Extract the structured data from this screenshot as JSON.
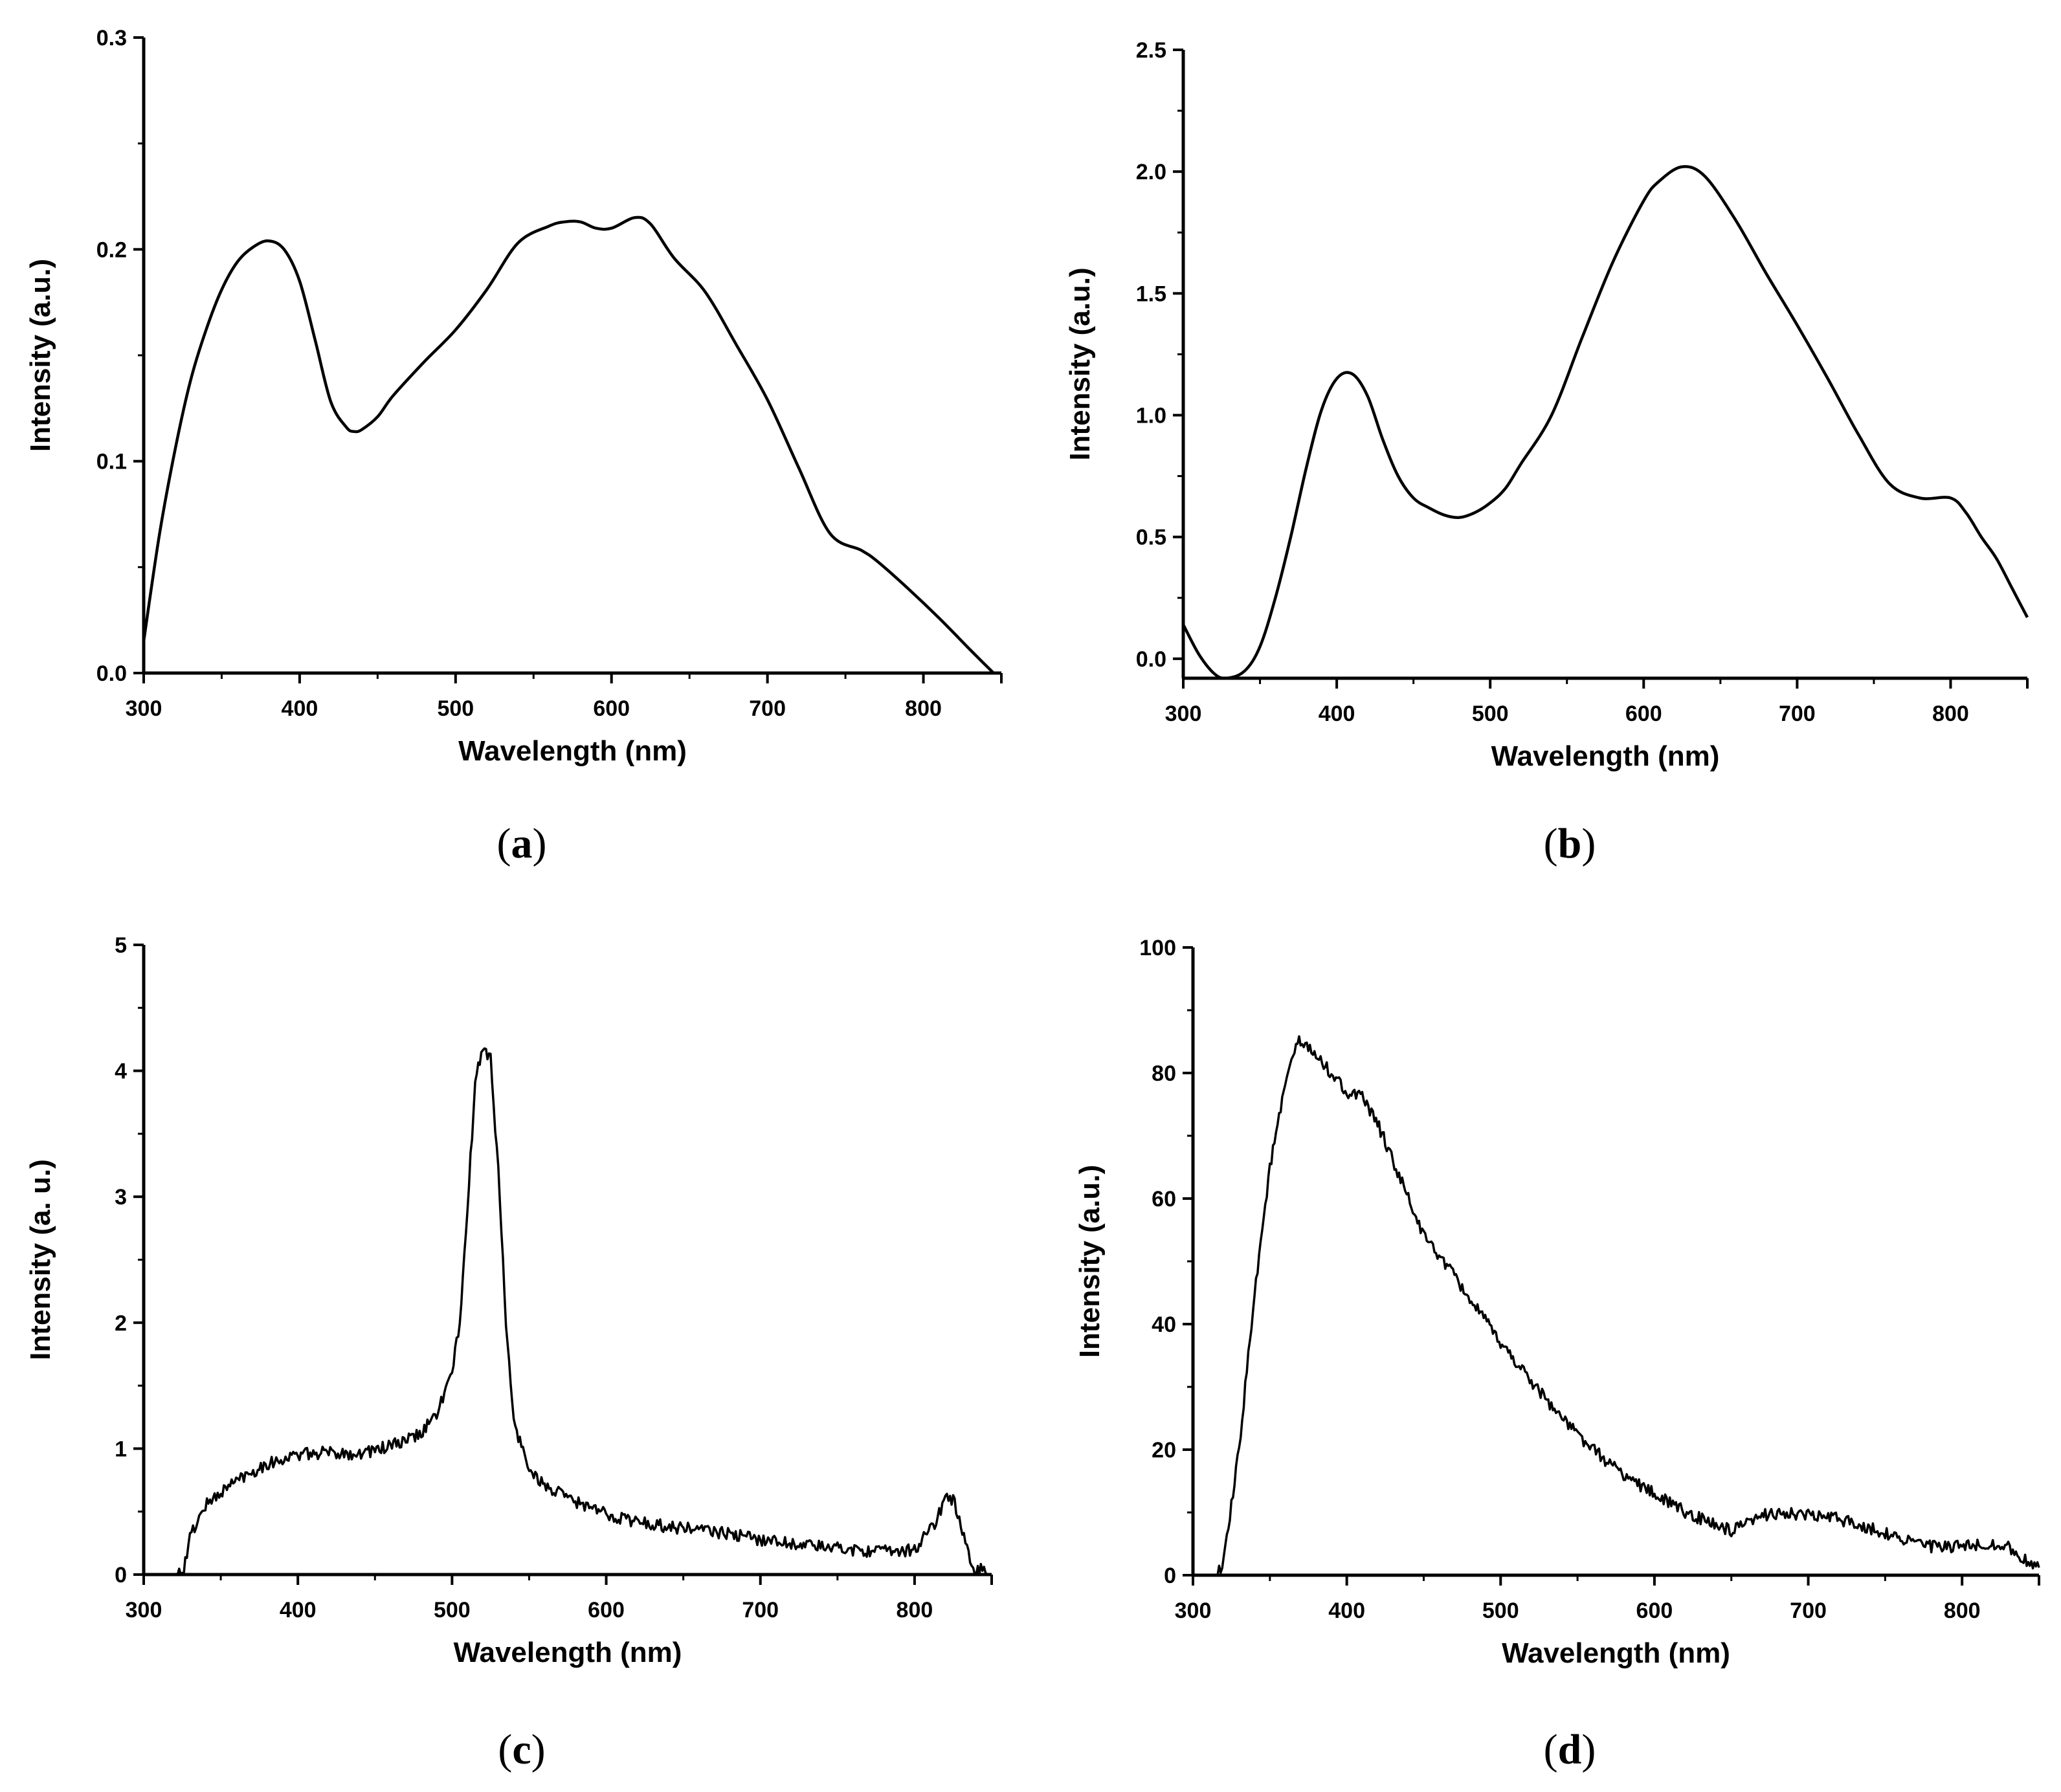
{
  "chart_data": [
    {
      "type": "line",
      "panel": "a",
      "caption_open": "(",
      "caption_letter": "a",
      "caption_close": ")",
      "xlabel": "Wavelength (nm)",
      "ylabel": "Intensity (a.u.)",
      "xlim": [
        300,
        850
      ],
      "ylim": [
        0,
        0.3
      ],
      "xticks": [
        300,
        400,
        500,
        600,
        700,
        800
      ],
      "xtick_labels": [
        "300",
        "400",
        "500",
        "600",
        "700",
        "800"
      ],
      "yticks": [
        0,
        0.1,
        0.2,
        0.3
      ],
      "ytick_labels": [
        "0.0",
        "0.1",
        "0.2",
        "0.3"
      ],
      "noisy": false,
      "x": [
        300,
        310,
        320,
        330,
        340,
        350,
        360,
        370,
        380,
        390,
        400,
        410,
        420,
        430,
        435,
        440,
        450,
        460,
        480,
        500,
        520,
        540,
        560,
        570,
        580,
        590,
        600,
        615,
        625,
        640,
        660,
        680,
        700,
        720,
        740,
        760,
        770,
        790,
        810,
        830,
        845
      ],
      "y": [
        0.015,
        0.065,
        0.105,
        0.138,
        0.162,
        0.181,
        0.194,
        0.201,
        0.204,
        0.2,
        0.185,
        0.157,
        0.128,
        0.116,
        0.114,
        0.115,
        0.121,
        0.131,
        0.147,
        0.162,
        0.181,
        0.203,
        0.211,
        0.213,
        0.213,
        0.21,
        0.21,
        0.215,
        0.212,
        0.196,
        0.18,
        0.155,
        0.129,
        0.097,
        0.066,
        0.058,
        0.053,
        0.04,
        0.026,
        0.011,
        0.0
      ]
    },
    {
      "type": "line",
      "panel": "b",
      "caption_open": "(",
      "caption_letter": "b",
      "caption_close": ")",
      "xlabel": "Wavelength (nm)",
      "ylabel": "Intensity (a.u.)",
      "xlim": [
        300,
        850
      ],
      "ylim": [
        -0.08,
        2.5
      ],
      "xticks": [
        300,
        400,
        500,
        600,
        700,
        800
      ],
      "xtick_labels": [
        "300",
        "400",
        "500",
        "600",
        "700",
        "800"
      ],
      "yticks": [
        0,
        0.5,
        1.0,
        1.5,
        2.0,
        2.5
      ],
      "ytick_labels": [
        "0.0",
        "0.5",
        "1.0",
        "1.5",
        "2.0",
        "2.5"
      ],
      "noisy": false,
      "x": [
        300,
        310,
        320,
        328,
        340,
        350,
        360,
        370,
        380,
        390,
        400,
        410,
        420,
        430,
        440,
        450,
        460,
        470,
        480,
        490,
        500,
        510,
        520,
        540,
        560,
        580,
        600,
        610,
        625,
        640,
        660,
        680,
        700,
        720,
        740,
        760,
        780,
        800,
        810,
        820,
        830,
        840,
        850
      ],
      "y": [
        0.14,
        0.02,
        -0.06,
        -0.08,
        -0.05,
        0.05,
        0.25,
        0.5,
        0.78,
        1.02,
        1.15,
        1.17,
        1.08,
        0.9,
        0.75,
        0.66,
        0.62,
        0.59,
        0.58,
        0.6,
        0.64,
        0.7,
        0.8,
        1.0,
        1.32,
        1.63,
        1.88,
        1.96,
        2.02,
        1.98,
        1.8,
        1.58,
        1.37,
        1.15,
        0.92,
        0.72,
        0.66,
        0.66,
        0.6,
        0.5,
        0.41,
        0.29,
        0.17
      ]
    },
    {
      "type": "line",
      "panel": "c",
      "caption_open": "(",
      "caption_letter": "c",
      "caption_close": ")",
      "xlabel": "Wavelength (nm)",
      "ylabel": "Intensity (a. u.)",
      "xlim": [
        300,
        850
      ],
      "ylim": [
        0,
        5
      ],
      "xticks": [
        300,
        400,
        500,
        600,
        700,
        800
      ],
      "xtick_labels": [
        "300",
        "400",
        "500",
        "600",
        "700",
        "800"
      ],
      "yticks": [
        0,
        1,
        2,
        3,
        4,
        5
      ],
      "ytick_labels": [
        "0",
        "1",
        "2",
        "3",
        "4",
        "5"
      ],
      "noisy": true,
      "x": [
        300,
        320,
        326,
        330,
        340,
        360,
        380,
        400,
        420,
        440,
        460,
        470,
        480,
        490,
        500,
        505,
        510,
        515,
        520,
        525,
        530,
        535,
        540,
        550,
        560,
        580,
        600,
        620,
        640,
        660,
        700,
        740,
        780,
        800,
        810,
        815,
        820,
        825,
        830,
        835,
        840,
        845,
        848
      ],
      "y": [
        0,
        0,
        0.02,
        0.3,
        0.55,
        0.75,
        0.88,
        0.95,
        0.97,
        0.96,
        1.02,
        1.06,
        1.12,
        1.28,
        1.6,
        2.0,
        2.9,
        3.9,
        4.2,
        4.1,
        3.2,
        2.0,
        1.2,
        0.85,
        0.7,
        0.58,
        0.48,
        0.42,
        0.38,
        0.36,
        0.28,
        0.22,
        0.18,
        0.2,
        0.35,
        0.45,
        0.62,
        0.6,
        0.38,
        0.15,
        0.02,
        0.05,
        0.02
      ]
    },
    {
      "type": "line",
      "panel": "d",
      "caption_open": "(",
      "caption_letter": "d",
      "caption_close": ")",
      "xlabel": "Wavelength (nm)",
      "ylabel": "Intensity (a.u.)",
      "xlim": [
        300,
        850
      ],
      "ylim": [
        0,
        100
      ],
      "xticks": [
        300,
        400,
        500,
        600,
        700,
        800
      ],
      "xtick_labels": [
        "300",
        "400",
        "500",
        "600",
        "700",
        "800"
      ],
      "yticks": [
        0,
        20,
        40,
        60,
        80,
        100
      ],
      "ytick_labels": [
        "0",
        "20",
        "40",
        "60",
        "80",
        "100"
      ],
      "noisy": true,
      "x": [
        300,
        310,
        315,
        320,
        330,
        340,
        350,
        360,
        368,
        375,
        390,
        400,
        410,
        420,
        440,
        450,
        460,
        480,
        500,
        520,
        540,
        560,
        580,
        600,
        620,
        640,
        650,
        660,
        675,
        700,
        720,
        740,
        760,
        780,
        800,
        820,
        830,
        840,
        850
      ],
      "y": [
        0,
        0,
        0,
        2,
        20,
        45,
        65,
        78,
        85,
        84,
        80,
        77,
        76,
        72,
        60,
        54,
        51,
        44,
        37,
        31,
        25,
        20,
        16,
        13,
        10,
        8,
        7,
        8,
        10,
        9.5,
        9,
        7.5,
        6,
        4.5,
        4.5,
        5,
        4.5,
        2.5,
        1
      ]
    }
  ]
}
